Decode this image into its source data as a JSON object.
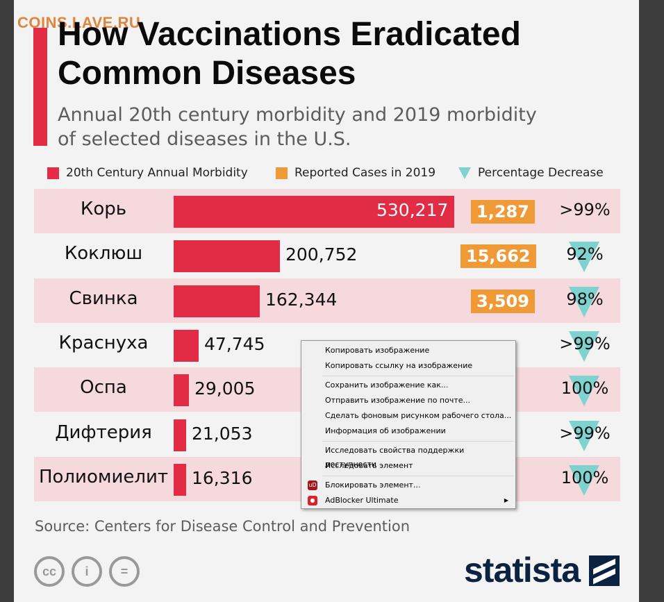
{
  "watermark": "COINS.LAVE.RU",
  "title": {
    "line1": "How Vaccinations Eradicated",
    "line2": "Common Diseases"
  },
  "subtitle": {
    "line1": "Annual 20th century morbidity and 2019 morbidity",
    "line2": "of selected diseases in the U.S."
  },
  "legend": {
    "items": [
      {
        "label": "20th Century Annual Morbidity",
        "color": "#e22c45"
      },
      {
        "label": "Reported Cases in 2019",
        "color": "#f09a37"
      },
      {
        "label": "Percentage Decrease",
        "color": "#7ed3cf"
      }
    ]
  },
  "chart_data": {
    "type": "bar",
    "title": "How Vaccinations Eradicated Common Diseases",
    "categories": [
      "Корь",
      "Коклюш",
      "Свинка",
      "Краснуха",
      "Оспа",
      "Дифтерия",
      "Полиомиелит"
    ],
    "series": [
      {
        "name": "20th Century Annual Morbidity",
        "values": [
          530217,
          200752,
          162344,
          47745,
          29005,
          21053,
          16316
        ],
        "labels": [
          "530,217",
          "200,752",
          "162,344",
          "47,745",
          "29,005",
          "21,053",
          "16,316"
        ]
      },
      {
        "name": "Reported Cases in 2019",
        "values": [
          1287,
          15662,
          3509,
          null,
          null,
          null,
          null
        ],
        "labels": [
          "1,287",
          "15,662",
          "3,509",
          "",
          "",
          "",
          ""
        ]
      },
      {
        "name": "Percentage Decrease",
        "labels": [
          ">99%",
          "92%",
          "98%",
          ">99%",
          "100%",
          ">99%",
          "100%"
        ]
      }
    ]
  },
  "source": "Source: Centers for Disease Control and Prevention",
  "license_icons": {
    "cc": "cc",
    "by": "i",
    "nd": "="
  },
  "brand": {
    "logo_text": "statista"
  },
  "context_menu": {
    "items": [
      "Копировать изображение",
      "Копировать ссылку на изображение",
      "Сохранить изображение как...",
      "Отправить изображение по почте...",
      "Сделать фоновым рисунком рабочего стола...",
      "Информация об изображении",
      "Исследовать свойства поддержки доступности",
      "Исследовать элемент",
      "Блокировать элемент...",
      "AdBlocker Ultimate"
    ],
    "icon_ublock": "uD"
  }
}
